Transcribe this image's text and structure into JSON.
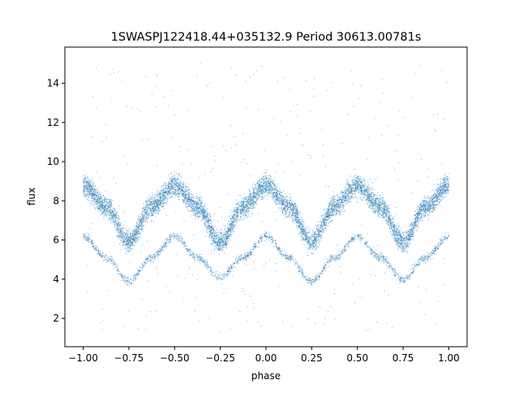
{
  "chart_data": {
    "type": "scatter",
    "title": "1SWASPJ122418.44+035132.9 Period 30613.00781s",
    "xlabel": "phase",
    "ylabel": "flux",
    "xlim": [
      -1.1,
      1.1
    ],
    "ylim": [
      0.55,
      15.85
    ],
    "grid": false,
    "x_ticks": [
      {
        "value": -1.0,
        "label": "−1.00"
      },
      {
        "value": -0.75,
        "label": "−0.75"
      },
      {
        "value": -0.5,
        "label": "−0.50"
      },
      {
        "value": -0.25,
        "label": "−0.25"
      },
      {
        "value": 0.0,
        "label": "0.00"
      },
      {
        "value": 0.25,
        "label": "0.25"
      },
      {
        "value": 0.5,
        "label": "0.50"
      },
      {
        "value": 0.75,
        "label": "0.75"
      },
      {
        "value": 1.0,
        "label": "1.00"
      }
    ],
    "y_ticks": [
      {
        "value": 2,
        "label": "2"
      },
      {
        "value": 4,
        "label": "4"
      },
      {
        "value": 6,
        "label": "6"
      },
      {
        "value": 8,
        "label": "8"
      },
      {
        "value": 10,
        "label": "10"
      },
      {
        "value": 12,
        "label": "12"
      },
      {
        "value": 14,
        "label": "14"
      }
    ],
    "point_color": "#1f77b4",
    "series": [
      {
        "description": "upper band (phase-folded light curve, mean trend)",
        "x": [
          -1.0,
          -0.875,
          -0.75,
          -0.625,
          -0.5,
          -0.375,
          -0.25,
          -0.125,
          0.0,
          0.125,
          0.25,
          0.375,
          0.5,
          0.625,
          0.75,
          0.875,
          1.0
        ],
        "y": [
          8.8,
          7.7,
          5.9,
          7.7,
          8.8,
          7.7,
          5.9,
          7.7,
          8.8,
          7.7,
          5.9,
          7.7,
          8.8,
          7.7,
          5.9,
          7.7,
          8.8
        ]
      },
      {
        "description": "lower band (mean trend)",
        "x": [
          -1.0,
          -0.875,
          -0.75,
          -0.625,
          -0.5,
          -0.375,
          -0.25,
          -0.125,
          0.0,
          0.125,
          0.25,
          0.375,
          0.5,
          0.625,
          0.75,
          0.875,
          1.0
        ],
        "y": [
          6.2,
          5.1,
          3.9,
          5.1,
          6.2,
          5.1,
          4.1,
          5.1,
          6.2,
          5.1,
          3.9,
          5.1,
          6.2,
          5.1,
          4.0,
          5.1,
          6.2
        ]
      }
    ]
  }
}
